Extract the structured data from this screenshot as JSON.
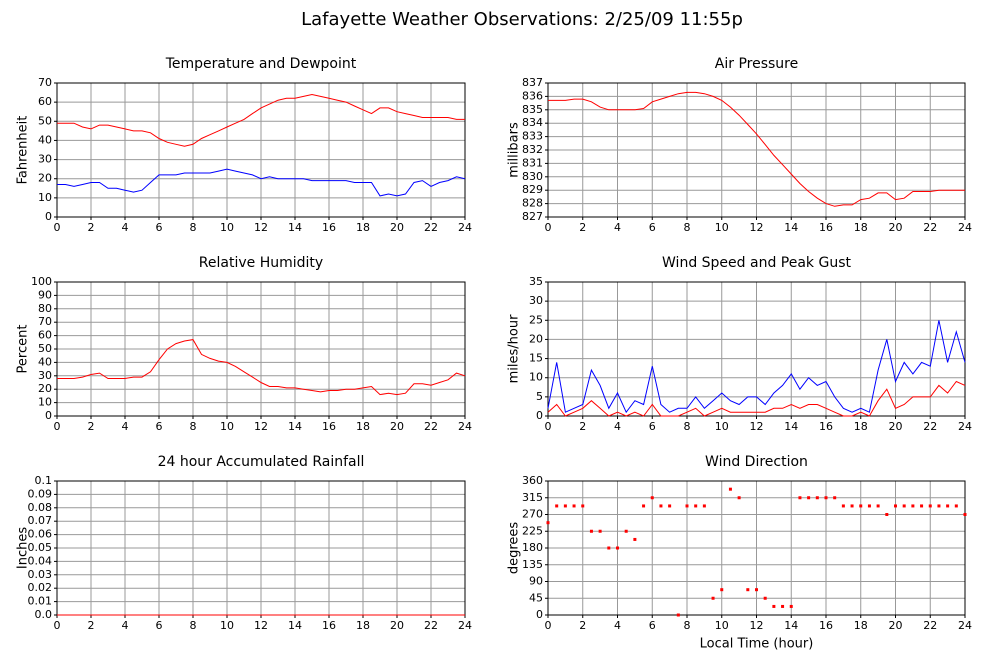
{
  "title": "Lafayette Weather Observations: 2/25/09 11:55p",
  "chart_data": [
    {
      "type": "line",
      "title": "Temperature and Dewpoint",
      "ylabel": "Fahrenheit",
      "x": [
        0,
        0.5,
        1,
        1.5,
        2,
        2.5,
        3,
        3.5,
        4,
        4.5,
        5,
        5.5,
        6,
        6.5,
        7,
        7.5,
        8,
        8.5,
        9,
        9.5,
        10,
        10.5,
        11,
        11.5,
        12,
        12.5,
        13,
        13.5,
        14,
        14.5,
        15,
        15.5,
        16,
        16.5,
        17,
        17.5,
        18,
        18.5,
        19,
        19.5,
        20,
        20.5,
        21,
        21.5,
        22,
        22.5,
        23,
        23.5,
        24
      ],
      "series": [
        {
          "color": "#ff0000",
          "values": [
            49,
            49,
            49,
            47,
            46,
            48,
            48,
            47,
            46,
            45,
            45,
            44,
            41,
            39,
            38,
            37,
            38,
            41,
            43,
            45,
            47,
            49,
            51,
            54,
            57,
            59,
            61,
            62,
            62,
            63,
            64,
            63,
            62,
            61,
            60,
            58,
            56,
            54,
            57,
            57,
            55,
            54,
            53,
            52,
            52,
            52,
            52,
            51,
            51
          ]
        },
        {
          "color": "#0000ff",
          "values": [
            17,
            17,
            16,
            17,
            18,
            18,
            15,
            15,
            14,
            13,
            14,
            18,
            22,
            22,
            22,
            23,
            23,
            23,
            23,
            24,
            25,
            24,
            23,
            22,
            20,
            21,
            20,
            20,
            20,
            20,
            19,
            19,
            19,
            19,
            19,
            18,
            18,
            18,
            11,
            12,
            11,
            12,
            18,
            19,
            16,
            18,
            19,
            21,
            20
          ]
        }
      ],
      "xlim": [
        0,
        24
      ],
      "xticks": [
        0,
        2,
        4,
        6,
        8,
        10,
        12,
        14,
        16,
        18,
        20,
        22,
        24
      ],
      "ylim": [
        0,
        70
      ],
      "yticks": [
        0,
        10,
        20,
        30,
        40,
        50,
        60,
        70
      ],
      "grid": true
    },
    {
      "type": "line",
      "title": "Air Pressure",
      "ylabel": "millibars",
      "x": [
        0,
        0.5,
        1,
        1.5,
        2,
        2.5,
        3,
        3.5,
        4,
        4.5,
        5,
        5.5,
        6,
        6.5,
        7,
        7.5,
        8,
        8.5,
        9,
        9.5,
        10,
        10.5,
        11,
        11.5,
        12,
        12.5,
        13,
        13.5,
        14,
        14.5,
        15,
        15.5,
        16,
        16.5,
        17,
        17.5,
        18,
        18.5,
        19,
        19.5,
        20,
        20.5,
        21,
        21.5,
        22,
        22.5,
        23,
        23.5,
        24
      ],
      "series": [
        {
          "color": "#ff0000",
          "values": [
            835.7,
            835.7,
            835.7,
            835.8,
            835.8,
            835.6,
            835.2,
            835.0,
            835.0,
            835.0,
            835.0,
            835.1,
            835.6,
            835.8,
            836.0,
            836.2,
            836.3,
            836.3,
            836.2,
            836.0,
            835.7,
            835.2,
            834.6,
            833.9,
            833.2,
            832.4,
            831.6,
            830.9,
            830.2,
            829.5,
            828.9,
            828.4,
            828.0,
            827.8,
            827.9,
            827.9,
            828.3,
            828.4,
            828.8,
            828.8,
            828.3,
            828.4,
            828.9,
            828.9,
            828.9,
            829.0,
            829.0,
            829.0,
            829.0
          ]
        }
      ],
      "xlim": [
        0,
        24
      ],
      "xticks": [
        0,
        2,
        4,
        6,
        8,
        10,
        12,
        14,
        16,
        18,
        20,
        22,
        24
      ],
      "ylim": [
        827,
        837
      ],
      "yticks": [
        827,
        828,
        829,
        830,
        831,
        832,
        833,
        834,
        835,
        836,
        837
      ],
      "grid": true
    },
    {
      "type": "line",
      "title": "Relative Humidity",
      "ylabel": "Percent",
      "x": [
        0,
        0.5,
        1,
        1.5,
        2,
        2.5,
        3,
        3.5,
        4,
        4.5,
        5,
        5.5,
        6,
        6.5,
        7,
        7.5,
        8,
        8.5,
        9,
        9.5,
        10,
        10.5,
        11,
        11.5,
        12,
        12.5,
        13,
        13.5,
        14,
        14.5,
        15,
        15.5,
        16,
        16.5,
        17,
        17.5,
        18,
        18.5,
        19,
        19.5,
        20,
        20.5,
        21,
        21.5,
        22,
        22.5,
        23,
        23.5,
        24
      ],
      "series": [
        {
          "color": "#ff0000",
          "values": [
            28,
            28,
            28,
            29,
            31,
            32,
            28,
            28,
            28,
            29,
            29,
            33,
            42,
            50,
            54,
            56,
            57,
            46,
            43,
            41,
            40,
            37,
            33,
            29,
            25,
            22,
            22,
            21,
            21,
            20,
            19,
            18,
            19,
            19,
            20,
            20,
            21,
            22,
            16,
            17,
            16,
            17,
            24,
            24,
            23,
            25,
            27,
            32,
            30
          ]
        }
      ],
      "xlim": [
        0,
        24
      ],
      "xticks": [
        0,
        2,
        4,
        6,
        8,
        10,
        12,
        14,
        16,
        18,
        20,
        22,
        24
      ],
      "ylim": [
        0,
        100
      ],
      "yticks": [
        0,
        10,
        20,
        30,
        40,
        50,
        60,
        70,
        80,
        90,
        100
      ],
      "grid": true
    },
    {
      "type": "line",
      "title": "Wind Speed and Peak Gust",
      "ylabel": "miles/hour",
      "x": [
        0,
        0.5,
        1,
        1.5,
        2,
        2.5,
        3,
        3.5,
        4,
        4.5,
        5,
        5.5,
        6,
        6.5,
        7,
        7.5,
        8,
        8.5,
        9,
        9.5,
        10,
        10.5,
        11,
        11.5,
        12,
        12.5,
        13,
        13.5,
        14,
        14.5,
        15,
        15.5,
        16,
        16.5,
        17,
        17.5,
        18,
        18.5,
        19,
        19.5,
        20,
        20.5,
        21,
        21.5,
        22,
        22.5,
        23,
        23.5,
        24
      ],
      "series": [
        {
          "color": "#0000ff",
          "values": [
            2,
            14,
            1,
            2,
            3,
            12,
            8,
            2,
            6,
            1,
            4,
            3,
            13,
            3,
            1,
            2,
            2,
            5,
            2,
            4,
            6,
            4,
            3,
            5,
            5,
            3,
            6,
            8,
            11,
            7,
            10,
            8,
            9,
            5,
            2,
            1,
            2,
            1,
            12,
            20,
            9,
            14,
            11,
            14,
            13,
            25,
            14,
            22,
            14
          ]
        },
        {
          "color": "#ff0000",
          "values": [
            1,
            3,
            0,
            1,
            2,
            4,
            2,
            0,
            1,
            0,
            1,
            0,
            3,
            0,
            0,
            0,
            1,
            2,
            0,
            1,
            2,
            1,
            1,
            1,
            1,
            1,
            2,
            2,
            3,
            2,
            3,
            3,
            2,
            1,
            0,
            0,
            1,
            0,
            4,
            7,
            2,
            3,
            5,
            5,
            5,
            8,
            6,
            9,
            8
          ]
        }
      ],
      "xlim": [
        0,
        24
      ],
      "xticks": [
        0,
        2,
        4,
        6,
        8,
        10,
        12,
        14,
        16,
        18,
        20,
        22,
        24
      ],
      "ylim": [
        0,
        35
      ],
      "yticks": [
        0,
        5,
        10,
        15,
        20,
        25,
        30,
        35
      ],
      "grid": true
    },
    {
      "type": "line",
      "title": "24 hour Accumulated Rainfall",
      "ylabel": "Inches",
      "x": [
        0,
        24
      ],
      "series": [
        {
          "color": "#ff0000",
          "values": [
            0,
            0
          ]
        }
      ],
      "xlim": [
        0,
        24
      ],
      "xticks": [
        0,
        2,
        4,
        6,
        8,
        10,
        12,
        14,
        16,
        18,
        20,
        22,
        24
      ],
      "ylim": [
        0,
        0.1
      ],
      "yticks": [
        {
          "value": 0,
          "label": "0.0"
        },
        0.01,
        0.02,
        0.03,
        0.04,
        0.05,
        0.06,
        0.07,
        0.08,
        0.09,
        0.1
      ],
      "grid": true
    },
    {
      "type": "scatter",
      "title": "Wind Direction",
      "ylabel": "degrees",
      "xlabel": "Local Time (hour)",
      "x": [
        0,
        0.5,
        1,
        1.5,
        2,
        2.5,
        3,
        3.5,
        4,
        4.5,
        5,
        5.5,
        6,
        6.5,
        7,
        7.5,
        8,
        8.5,
        9,
        9.5,
        10,
        10.5,
        11,
        11.5,
        12,
        12.5,
        13,
        13.5,
        14,
        14.5,
        15,
        15.5,
        16,
        16.5,
        17,
        17.5,
        18,
        18.5,
        19,
        19.5,
        20,
        20.5,
        21,
        21.5,
        22,
        22.5,
        23,
        23.5,
        24
      ],
      "series": [
        {
          "color": "#ff0000",
          "values": [
            248,
            293,
            293,
            293,
            293,
            225,
            225,
            180,
            180,
            225,
            203,
            293,
            315,
            293,
            293,
            0,
            293,
            293,
            293,
            45,
            68,
            338,
            315,
            68,
            68,
            45,
            23,
            23,
            23,
            315,
            315,
            315,
            315,
            315,
            293,
            293,
            293,
            293,
            293,
            270,
            293,
            293,
            293,
            293,
            293,
            293,
            293,
            293,
            270
          ]
        }
      ],
      "xlim": [
        0,
        24
      ],
      "xticks": [
        0,
        2,
        4,
        6,
        8,
        10,
        12,
        14,
        16,
        18,
        20,
        22,
        24
      ],
      "ylim": [
        0,
        360
      ],
      "yticks": [
        0,
        45,
        90,
        135,
        180,
        225,
        270,
        315,
        360
      ],
      "grid": true
    }
  ]
}
